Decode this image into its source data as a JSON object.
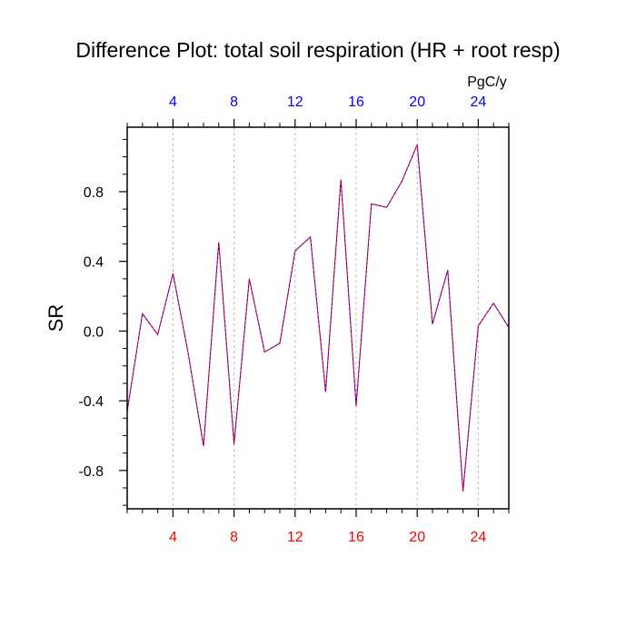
{
  "chart_data": {
    "type": "line",
    "title": "Difference Plot: total soil respiration (HR + root resp)",
    "units": "PgC/y",
    "ylabel": "SR",
    "xlabel": "",
    "xlim": [
      1,
      26
    ],
    "ylim": [
      -1.02,
      1.17
    ],
    "x_ticks": [
      "4",
      "8",
      "12",
      "16",
      "20",
      "24"
    ],
    "y_ticks": [
      "0.8",
      "0.4",
      "0.0",
      "-0.4",
      "-0.8"
    ],
    "grid": "vertical-dashed",
    "colors": {
      "bottom_tick_labels": "#ff0000",
      "top_tick_labels": "#0000ff",
      "series_line_a": "#0000ff",
      "series_line_b": "#ff0000"
    },
    "x": [
      1,
      2,
      3,
      4,
      5,
      6,
      7,
      8,
      9,
      10,
      11,
      12,
      13,
      14,
      15,
      16,
      17,
      18,
      19,
      20,
      21,
      22,
      23,
      24,
      25,
      26
    ],
    "series": [
      {
        "values": [
          -0.46,
          0.1,
          -0.02,
          0.33,
          -0.13,
          -0.66,
          0.51,
          -0.65,
          0.3,
          -0.12,
          -0.07,
          0.46,
          0.54,
          -0.35,
          0.87,
          -0.43,
          0.73,
          0.71,
          0.86,
          1.07,
          0.04,
          0.35,
          -0.92,
          0.03,
          0.16,
          0.02
        ]
      },
      {
        "values": [
          -0.46,
          0.1,
          -0.02,
          0.33,
          -0.13,
          -0.66,
          0.51,
          -0.65,
          0.3,
          -0.12,
          -0.07,
          0.46,
          0.54,
          -0.35,
          0.87,
          -0.43,
          0.73,
          0.71,
          0.86,
          1.07,
          0.04,
          0.35,
          -0.92,
          0.03,
          0.16,
          0.02
        ]
      }
    ]
  }
}
